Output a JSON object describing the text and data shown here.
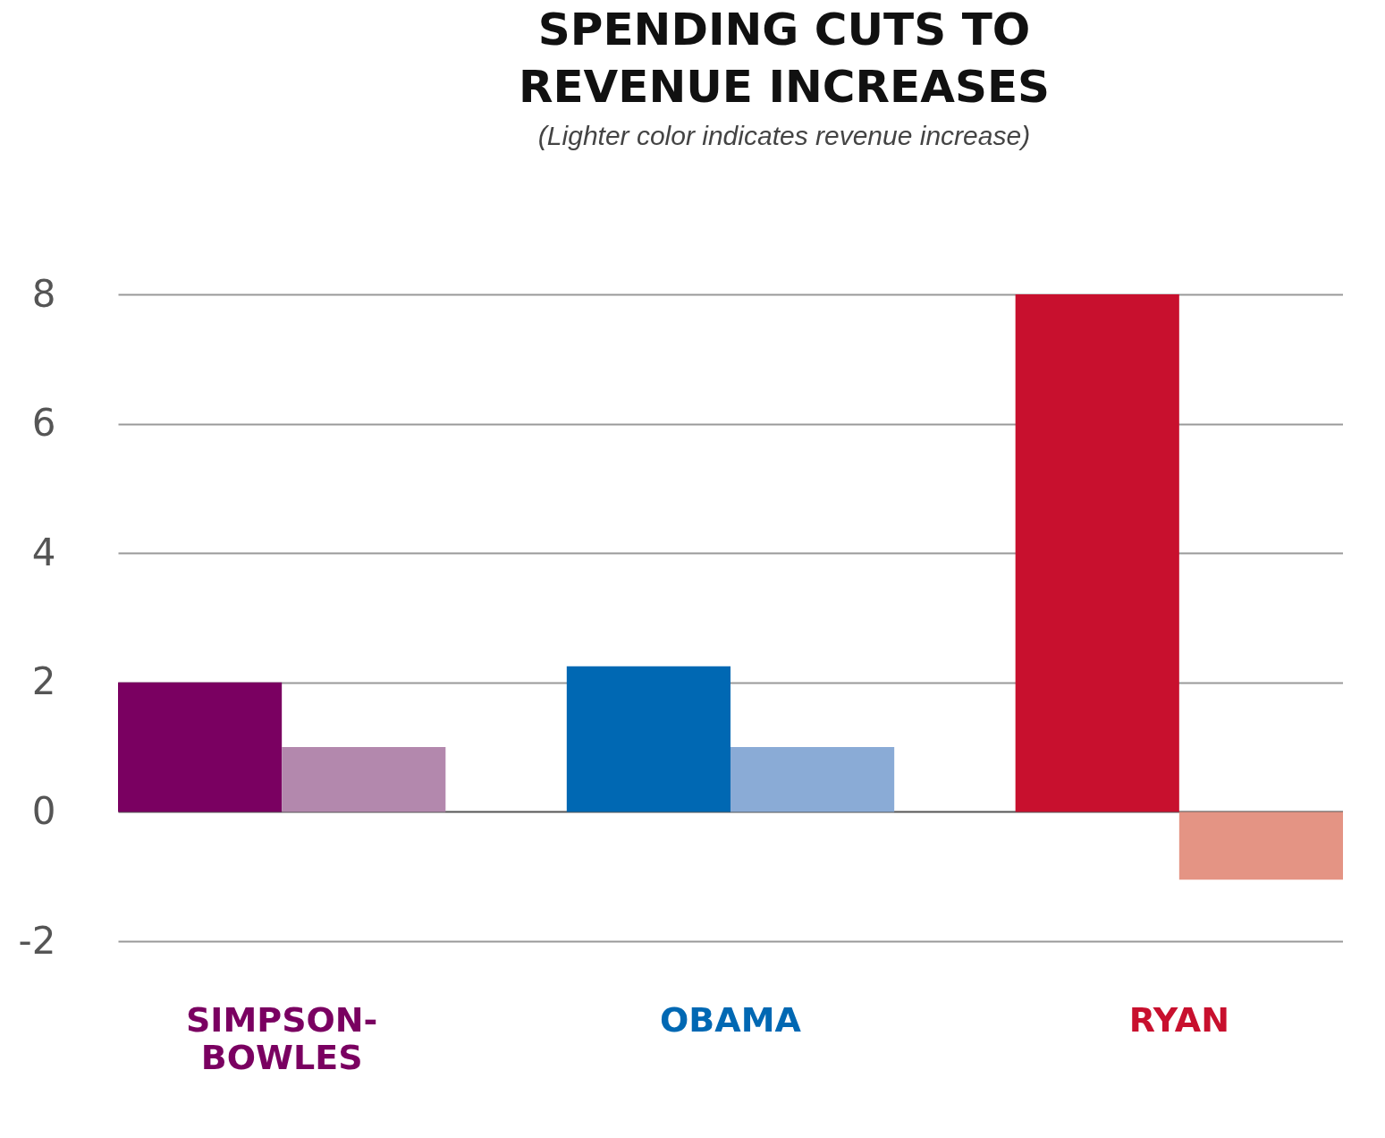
{
  "chart_data": {
    "type": "bar",
    "title": "SPENDING CUTS TO REVENUE INCREASES",
    "subtitle": "(Lighter color indicates revenue increase)",
    "categories": [
      "SIMPSON-BOWLES",
      "OBAMA",
      "RYAN"
    ],
    "series": [
      {
        "colors": [
          "#7a0061",
          "#0068b3",
          "#c8102e"
        ],
        "values": [
          2,
          2.25,
          8
        ]
      },
      {
        "colors": [
          "#b388ad",
          "#8aabd6",
          "#e49484"
        ],
        "values": [
          1,
          1,
          -1.05
        ]
      }
    ],
    "ylim": [
      -2,
      8
    ],
    "yticks": [
      -2,
      0,
      2,
      4,
      6,
      8
    ],
    "grid": "y"
  }
}
